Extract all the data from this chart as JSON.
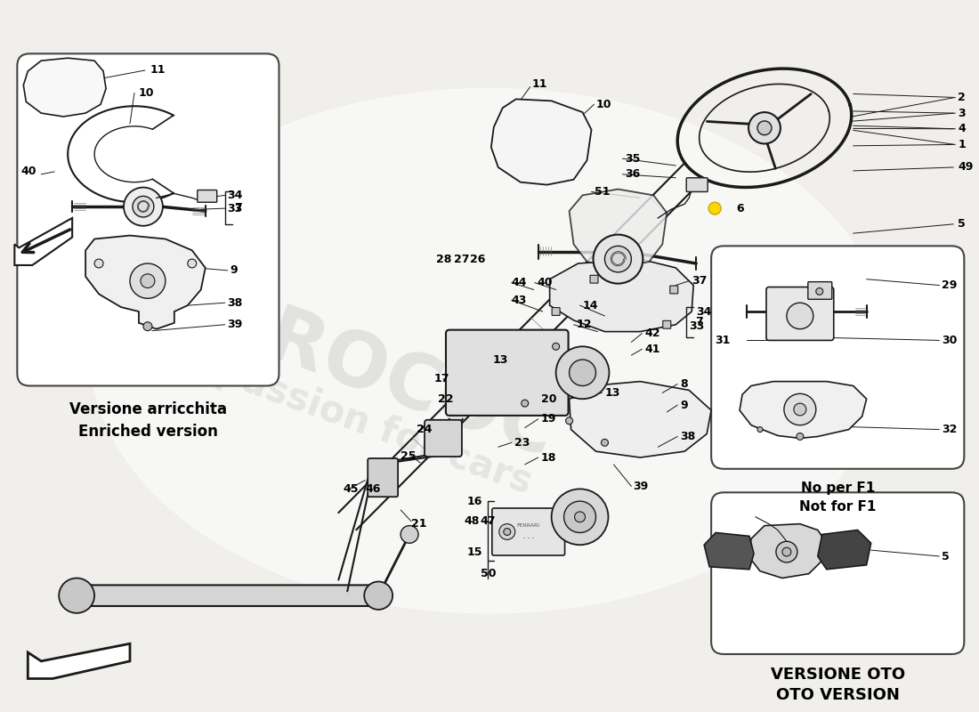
{
  "bg_color": "#f5f5f3",
  "line_color": "#1a1a1a",
  "text_color": "#000000",
  "watermark1": "EUROCOC",
  "watermark2": "a passion for cars",
  "watermark_color": "#c8c8c8",
  "inset_enriched_label": "Versione arricchita\nEnriched version",
  "inset_nof1_label": "No per F1\nNot for F1",
  "inset_oto_label": "VERSIONE OTO\nOTO VERSION"
}
